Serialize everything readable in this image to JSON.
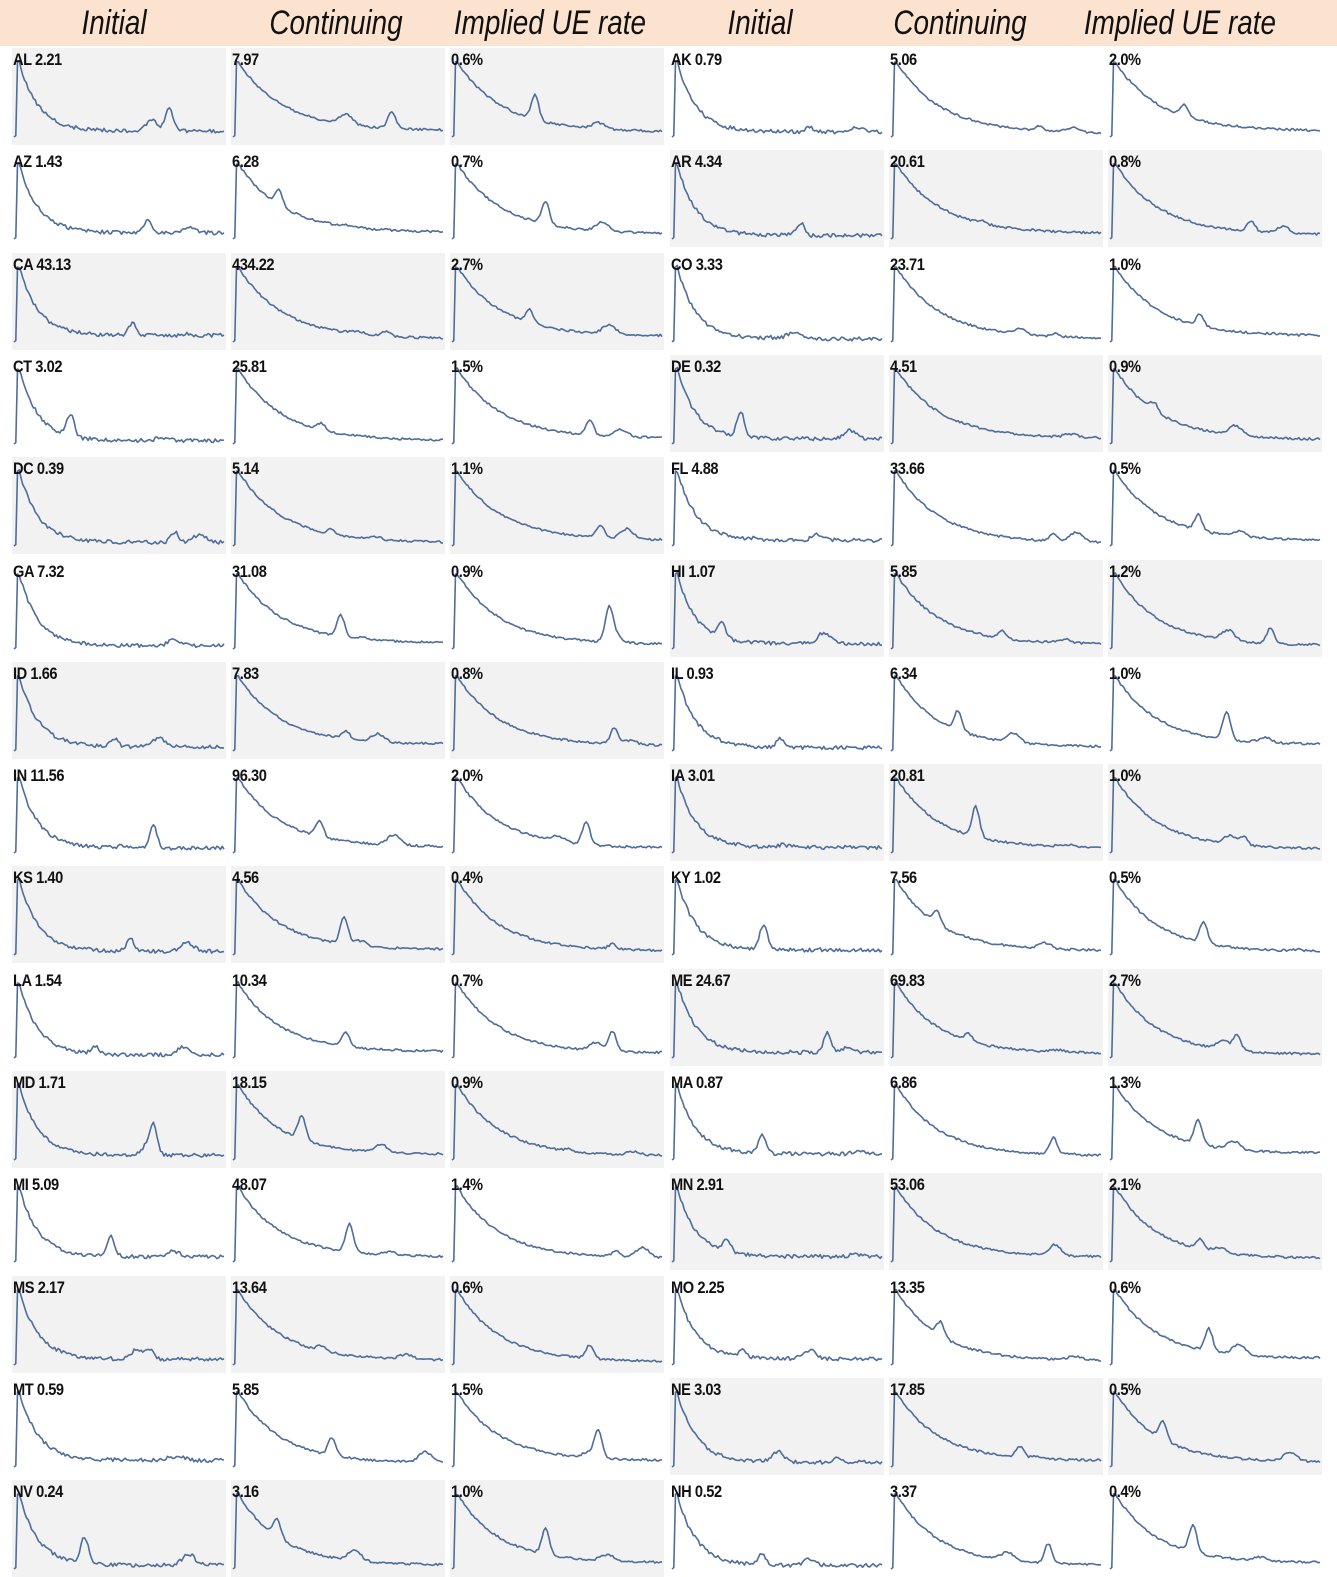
{
  "header": {
    "left": [
      "Initial",
      "Continuing",
      "Implied UE rate"
    ],
    "right": [
      "Initial",
      "Continuing",
      "Implied UE rate"
    ]
  },
  "colors": {
    "line": "#4e6d99",
    "header_bg": "#fbe3cf",
    "shade": "#f2f2f2"
  },
  "chart_data": {
    "type": "line",
    "layout": "small multiples; two state groups side by side; each state has Initial, Continuing and Implied UE rate sparklines",
    "rows": [
      {
        "left": {
          "state": "AL",
          "initial": "2.21",
          "continuing": "7.97",
          "rate": "0.6%"
        },
        "right": {
          "state": "AK",
          "initial": "0.79",
          "continuing": "5.06",
          "rate": "2.0%"
        }
      },
      {
        "left": {
          "state": "AZ",
          "initial": "1.43",
          "continuing": "6.28",
          "rate": "0.7%"
        },
        "right": {
          "state": "AR",
          "initial": "4.34",
          "continuing": "20.61",
          "rate": "0.8%"
        }
      },
      {
        "left": {
          "state": "CA",
          "initial": "43.13",
          "continuing": "434.22",
          "rate": "2.7%"
        },
        "right": {
          "state": "CO",
          "initial": "3.33",
          "continuing": "23.71",
          "rate": "1.0%"
        }
      },
      {
        "left": {
          "state": "CT",
          "initial": "3.02",
          "continuing": "25.81",
          "rate": "1.5%"
        },
        "right": {
          "state": "DE",
          "initial": "0.32",
          "continuing": "4.51",
          "rate": "0.9%"
        }
      },
      {
        "left": {
          "state": "DC",
          "initial": "0.39",
          "continuing": "5.14",
          "rate": "1.1%"
        },
        "right": {
          "state": "FL",
          "initial": "4.88",
          "continuing": "33.66",
          "rate": "0.5%"
        }
      },
      {
        "left": {
          "state": "GA",
          "initial": "7.32",
          "continuing": "31.08",
          "rate": "0.9%"
        },
        "right": {
          "state": "HI",
          "initial": "1.07",
          "continuing": "5.85",
          "rate": "1.2%"
        }
      },
      {
        "left": {
          "state": "ID",
          "initial": "1.66",
          "continuing": "7.83",
          "rate": "0.8%"
        },
        "right": {
          "state": "IL",
          "initial": "0.93",
          "continuing": "6.34",
          "rate": "1.0%"
        }
      },
      {
        "left": {
          "state": "IN",
          "initial": "11.56",
          "continuing": "96.30",
          "rate": "2.0%"
        },
        "right": {
          "state": "IA",
          "initial": "3.01",
          "continuing": "20.81",
          "rate": "1.0%"
        }
      },
      {
        "left": {
          "state": "KS",
          "initial": "1.40",
          "continuing": "4.56",
          "rate": "0.4%"
        },
        "right": {
          "state": "KY",
          "initial": "1.02",
          "continuing": "7.56",
          "rate": "0.5%"
        }
      },
      {
        "left": {
          "state": "LA",
          "initial": "1.54",
          "continuing": "10.34",
          "rate": "0.7%"
        },
        "right": {
          "state": "ME",
          "initial": "24.67",
          "continuing": "69.83",
          "rate": "2.7%"
        }
      },
      {
        "left": {
          "state": "MD",
          "initial": "1.71",
          "continuing": "18.15",
          "rate": "0.9%"
        },
        "right": {
          "state": "MA",
          "initial": "0.87",
          "continuing": "6.86",
          "rate": "1.3%"
        }
      },
      {
        "left": {
          "state": "MI",
          "initial": "5.09",
          "continuing": "48.07",
          "rate": "1.4%"
        },
        "right": {
          "state": "MN",
          "initial": "2.91",
          "continuing": "53.06",
          "rate": "2.1%"
        }
      },
      {
        "left": {
          "state": "MS",
          "initial": "2.17",
          "continuing": "13.64",
          "rate": "0.6%"
        },
        "right": {
          "state": "MO",
          "initial": "2.25",
          "continuing": "13.35",
          "rate": "0.6%"
        }
      },
      {
        "left": {
          "state": "MT",
          "initial": "0.59",
          "continuing": "5.85",
          "rate": "1.5%"
        },
        "right": {
          "state": "NE",
          "initial": "3.03",
          "continuing": "17.85",
          "rate": "0.5%"
        }
      },
      {
        "left": {
          "state": "NV",
          "initial": "0.24",
          "continuing": "3.16",
          "rate": "1.0%"
        },
        "right": {
          "state": "NH",
          "initial": "0.52",
          "continuing": "3.37",
          "rate": "0.4%"
        }
      }
    ]
  }
}
